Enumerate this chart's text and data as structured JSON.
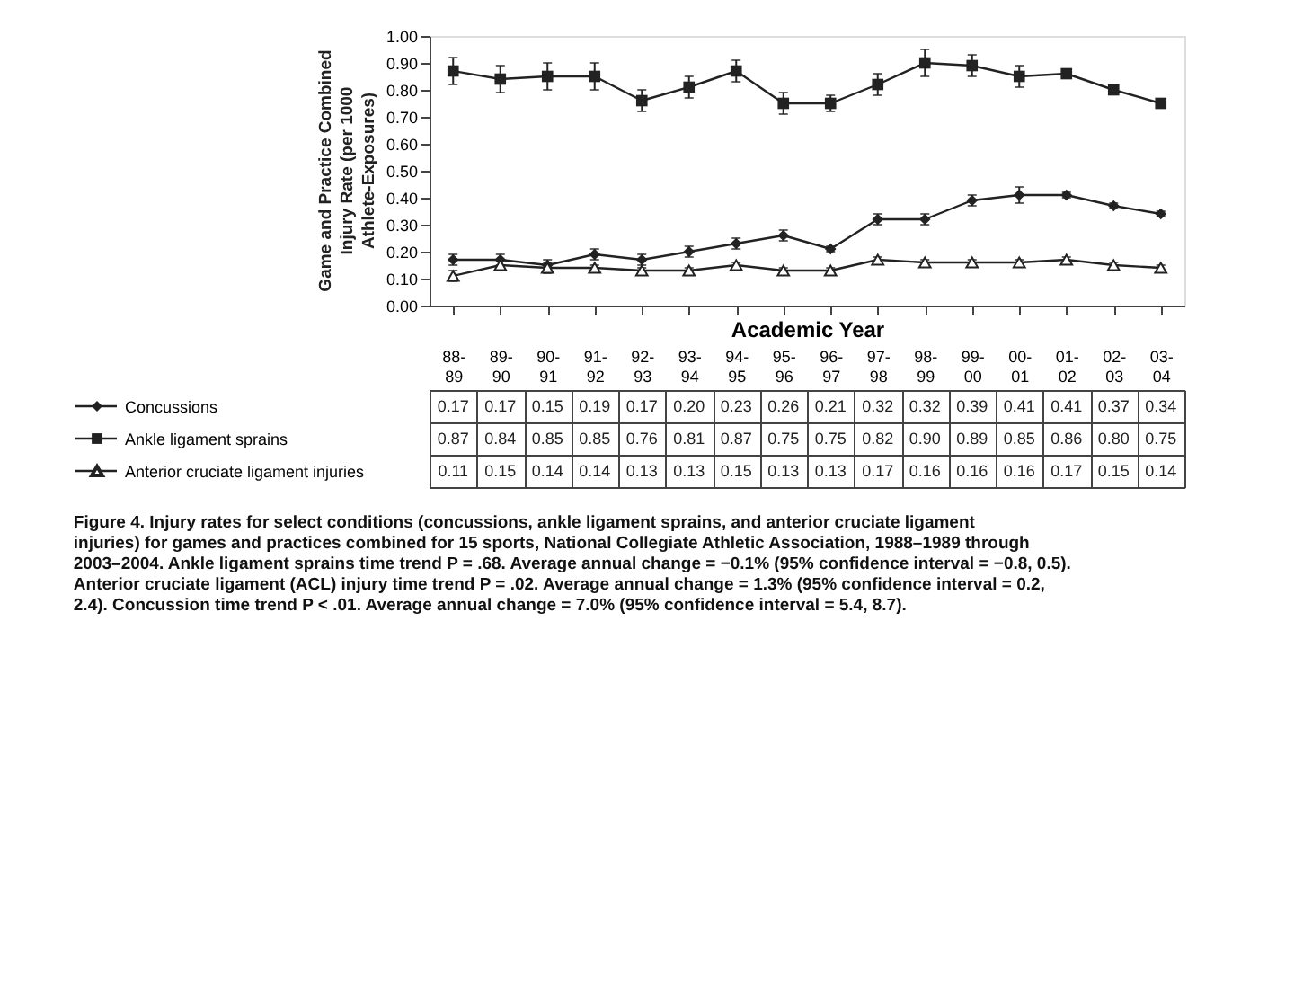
{
  "chart_data": {
    "type": "line",
    "ylabel": "Game and Practice Combined Injury Rate (per 1000 Athlete-Exposures)",
    "xlabel": "Academic Year",
    "categories": [
      "88-89",
      "89-90",
      "90-91",
      "91-92",
      "92-93",
      "93-94",
      "94-95",
      "95-96",
      "96-97",
      "97-98",
      "98-99",
      "99-00",
      "00-01",
      "01-02",
      "02-03",
      "03-04"
    ],
    "series": [
      {
        "name": "Concussions",
        "color": "#222222",
        "marker": "diamond",
        "value_labels": [
          "0.17",
          "0.17",
          "0.15",
          "0.19",
          "0.17",
          "0.20",
          "0.23",
          "0.26",
          "0.21",
          "0.32",
          "0.32",
          "0.39",
          "0.41",
          "0.41",
          "0.37",
          "0.34"
        ],
        "values": [
          0.17,
          0.17,
          0.15,
          0.19,
          0.17,
          0.2,
          0.23,
          0.26,
          0.21,
          0.32,
          0.32,
          0.39,
          0.41,
          0.41,
          0.37,
          0.34
        ],
        "errors": [
          0.02,
          0.02,
          0.02,
          0.02,
          0.02,
          0.02,
          0.02,
          0.02,
          0.01,
          0.02,
          0.02,
          0.02,
          0.03,
          0.01,
          0.01,
          0.01
        ]
      },
      {
        "name": "Ankle ligament sprains",
        "color": "#222222",
        "marker": "square",
        "value_labels": [
          "0.87",
          "0.84",
          "0.85",
          "0.85",
          "0.76",
          "0.81",
          "0.87",
          "0.75",
          "0.75",
          "0.82",
          "0.90",
          "0.89",
          "0.85",
          "0.86",
          "0.80",
          "0.75"
        ],
        "values": [
          0.87,
          0.84,
          0.85,
          0.85,
          0.76,
          0.81,
          0.87,
          0.75,
          0.75,
          0.82,
          0.9,
          0.89,
          0.85,
          0.86,
          0.8,
          0.75
        ],
        "errors": [
          0.05,
          0.05,
          0.05,
          0.05,
          0.04,
          0.04,
          0.04,
          0.04,
          0.03,
          0.04,
          0.05,
          0.04,
          0.04,
          0.01,
          0.01,
          0.01
        ]
      },
      {
        "name": "Anterior cruciate ligament injuries",
        "color": "#222222",
        "marker": "triangle",
        "value_labels": [
          "0.11",
          "0.15",
          "0.14",
          "0.14",
          "0.13",
          "0.13",
          "0.15",
          "0.13",
          "0.13",
          "0.17",
          "0.16",
          "0.16",
          "0.16",
          "0.17",
          "0.15",
          "0.14"
        ],
        "values": [
          0.11,
          0.15,
          0.14,
          0.14,
          0.13,
          0.13,
          0.15,
          0.13,
          0.13,
          0.17,
          0.16,
          0.16,
          0.16,
          0.17,
          0.15,
          0.14
        ],
        "errors": [
          0.02,
          0.02,
          0.02,
          0.01,
          0.01,
          0.01,
          0.01,
          0.01,
          0.01,
          0.01,
          0.01,
          0.01,
          0.01,
          0.01,
          0.01,
          0.01
        ]
      }
    ],
    "ylim": [
      0,
      1
    ],
    "yticks": [
      {
        "value": 0,
        "label": "0.00"
      },
      {
        "value": 0.1,
        "label": "0.10"
      },
      {
        "value": 0.2,
        "label": "0.20"
      },
      {
        "value": 0.3,
        "label": "0.30"
      },
      {
        "value": 0.4,
        "label": "0.40"
      },
      {
        "value": 0.5,
        "label": "0.50"
      },
      {
        "value": 0.6,
        "label": "0.60"
      },
      {
        "value": 0.7,
        "label": "0.70"
      },
      {
        "value": 0.8,
        "label": "0.80"
      },
      {
        "value": 0.9,
        "label": "0.90"
      },
      {
        "value": 1,
        "label": "1.00"
      }
    ],
    "grid": false,
    "legend": "bottom",
    "line_style": "solid",
    "annotations": [
      "Figure 4. Injury rates for select conditions (concussions, ankle ligament sprains, and anterior cruciate ligament injuries) for games and practices combined for 15 sports, National Collegiate Athletic Association, 1988–1989 through 2003–2004. Ankle ligament sprains time trend P = .68. Average annual change = −0.1% (95% confidence interval = −0.8, 0.5). Anterior cruciate ligament (ACL) injury time trend P = .02. Average annual change = 1.3% (95% confidence interval = 0.2, 2.4). Concussion time trend P < .01. Average annual change = 7.0% (95% confidence interval = 5.4, 8.7)."
    ]
  }
}
